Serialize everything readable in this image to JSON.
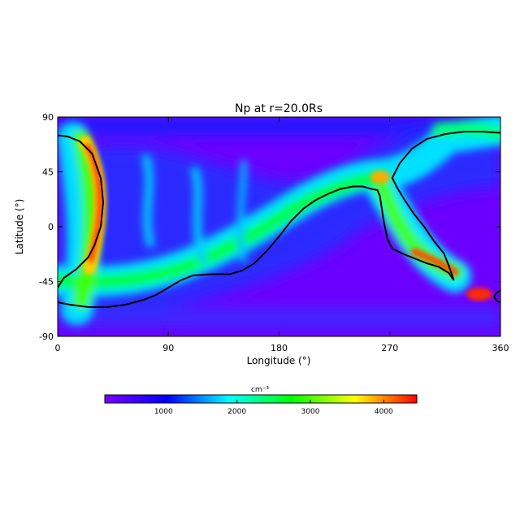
{
  "chart_data": {
    "type": "heatmap",
    "title": "Np at r=20.0Rs",
    "xlabel": "Longitude (°)",
    "ylabel": "Latitude (°)",
    "xlim": [
      0,
      360
    ],
    "ylim": [
      -90,
      90
    ],
    "x_ticks": [
      "0",
      "90",
      "180",
      "270",
      "360"
    ],
    "x_tick_values": [
      0,
      90,
      180,
      270,
      360
    ],
    "y_ticks": [
      "90",
      "45",
      "0",
      "-45",
      "-90"
    ],
    "y_tick_values": [
      90,
      45,
      0,
      -45,
      -90
    ],
    "colorbar": {
      "unit_label": "cm⁻³",
      "range": [
        200,
        4450
      ],
      "ticks": [
        "1000",
        "2000",
        "3000",
        "4000"
      ],
      "tick_values": [
        1000,
        2000,
        3000,
        4000
      ],
      "colormap": [
        "#7a00ff",
        "#0000ff",
        "#00ffff",
        "#00ff00",
        "#ffff00",
        "#ff0000"
      ]
    },
    "series": [
      {
        "type": "contour",
        "points": [
          [
            0,
            -62
          ],
          [
            10,
            -64
          ],
          [
            25,
            -66
          ],
          [
            40,
            -66
          ],
          [
            55,
            -64
          ],
          [
            70,
            -60
          ],
          [
            80,
            -56
          ],
          [
            90,
            -50
          ],
          [
            100,
            -44
          ],
          [
            110,
            -40
          ],
          [
            125,
            -39
          ],
          [
            140,
            -39
          ],
          [
            150,
            -36
          ],
          [
            160,
            -30
          ],
          [
            170,
            -20
          ],
          [
            180,
            -8
          ],
          [
            190,
            5
          ],
          [
            200,
            15
          ],
          [
            210,
            22
          ],
          [
            220,
            27
          ],
          [
            230,
            31
          ],
          [
            240,
            33
          ],
          [
            248,
            33
          ],
          [
            255,
            31
          ],
          [
            260,
            30
          ],
          [
            262,
            25
          ],
          [
            263,
            18
          ],
          [
            265,
            5
          ],
          [
            268,
            -10
          ],
          [
            272,
            -18
          ],
          [
            280,
            -22
          ],
          [
            290,
            -26
          ],
          [
            300,
            -30
          ],
          [
            310,
            -33
          ],
          [
            318,
            -38
          ],
          [
            322,
            -44
          ]
        ]
      },
      {
        "type": "contour",
        "points": [
          [
            0,
            75
          ],
          [
            8,
            74
          ],
          [
            18,
            70
          ],
          [
            28,
            60
          ],
          [
            35,
            40
          ],
          [
            37,
            20
          ],
          [
            35,
            0
          ],
          [
            30,
            -15
          ],
          [
            25,
            -25
          ],
          [
            15,
            -35
          ],
          [
            5,
            -42
          ],
          [
            0,
            -50
          ]
        ]
      },
      {
        "type": "contour",
        "points": [
          [
            322,
            -44
          ],
          [
            318,
            -32
          ],
          [
            314,
            -22
          ],
          [
            306,
            -12
          ],
          [
            298,
            0
          ],
          [
            290,
            10
          ],
          [
            282,
            22
          ],
          [
            276,
            32
          ],
          [
            272,
            40
          ],
          [
            278,
            52
          ],
          [
            288,
            64
          ],
          [
            300,
            72
          ],
          [
            315,
            76
          ],
          [
            330,
            78
          ],
          [
            345,
            78
          ],
          [
            360,
            77
          ]
        ]
      },
      {
        "type": "contour",
        "points": [
          [
            360,
            -52
          ],
          [
            356,
            -55
          ],
          [
            355,
            -58
          ],
          [
            357,
            -61
          ],
          [
            360,
            -62
          ]
        ]
      }
    ],
    "high_density_regions": [
      {
        "lon": 28,
        "lat": 45,
        "value": 4300
      },
      {
        "lon": 30,
        "lat": 10,
        "value": 4000
      },
      {
        "lon": 325,
        "lat": -40,
        "value": 4200
      },
      {
        "lon": 345,
        "lat": -53,
        "value": 4300
      },
      {
        "lon": 262,
        "lat": 40,
        "value": 3800
      }
    ]
  }
}
